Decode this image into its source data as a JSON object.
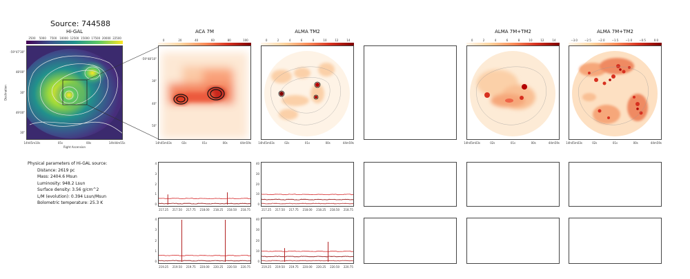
{
  "source_title": "Source: 744588",
  "panels": {
    "higal": {
      "title": "Hi-GAL",
      "colorbar_ticks": [
        "2500",
        "5000",
        "7500",
        "10000",
        "12500",
        "15000",
        "17500",
        "20000",
        "22500"
      ],
      "y_ticks": [
        "-59°47'30\"",
        "48'00\"",
        "30\"",
        "49'00\"",
        "30\""
      ],
      "x_ticks": [
        "14h45m10s",
        "05s",
        "00s",
        "14h44m55s"
      ],
      "xlabel": "Right Ascension",
      "ylabel": "Declination"
    },
    "aca7m": {
      "title": "ACA 7M",
      "colorbar_ticks": [
        "0",
        "20",
        "40",
        "60",
        "80",
        "100"
      ],
      "y_ticks": [
        "-59°48'10\"",
        "30\"",
        "40\"",
        "50\""
      ],
      "x_ticks": [
        "14h45m03s",
        "02s",
        "01s",
        "00s",
        "44m59s"
      ]
    },
    "almatm2": {
      "title": "ALMA TM2",
      "colorbar_ticks": [
        "0",
        "2",
        "4",
        "6",
        "8",
        "10",
        "12",
        "14"
      ],
      "x_ticks": [
        "14h45m03s",
        "02s",
        "01s",
        "00s",
        "44m59s"
      ]
    },
    "combo": {
      "title": "ALMA 7M+TM2",
      "colorbar_ticks": [
        "0",
        "2",
        "4",
        "6",
        "8",
        "10",
        "12",
        "14"
      ],
      "x_ticks": [
        "14h45m03s",
        "02s",
        "01s",
        "00s",
        "44m59s"
      ]
    },
    "combolog": {
      "title": "ALMA 7M+TM2",
      "colorbar_ticks": [
        "−3.0",
        "−2.5",
        "−2.0",
        "−1.5",
        "−1.0",
        "−0.5",
        "0.0"
      ],
      "x_ticks": [
        "14h45m03s",
        "02s",
        "01s",
        "00s",
        "44m59s"
      ]
    }
  },
  "params": {
    "heading": "Physical parameters of Hi-GAL source:",
    "lines": [
      "Distance: 2619 pc",
      "Mass: 2404.6 Msun",
      "Luminosity: 948.2 Lsun",
      "Surface density: 3.56 g/cm^2",
      "L/M (evolution): 0.394 Lsun/Msun",
      "Bolometric temperature: 25.3 K"
    ]
  },
  "spectra": {
    "row1_x_ticks": [
      "217.25",
      "217.50",
      "217.75",
      "218.00",
      "218.25",
      "218.50",
      "218.75"
    ],
    "row2_x_ticks": [
      "219.25",
      "219.50",
      "219.75",
      "220.00",
      "220.25",
      "220.50",
      "220.75"
    ],
    "aca_y_ticks": [
      "4",
      "3",
      "2",
      "1",
      "0"
    ],
    "tm2_y_ticks": [
      "40",
      "30",
      "20",
      "10",
      "0"
    ]
  },
  "chart_data": [
    {
      "type": "heatmap",
      "title": "Hi-GAL",
      "xlabel": "Right Ascension",
      "ylabel": "Declination",
      "colorbar_range": [
        2500,
        22500
      ]
    },
    {
      "type": "heatmap",
      "title": "ACA 7M",
      "colorbar_range": [
        0,
        100
      ]
    },
    {
      "type": "heatmap",
      "title": "ALMA TM2",
      "colorbar_range": [
        0,
        14
      ]
    },
    {
      "type": "heatmap",
      "title": "ALMA 7M+TM2",
      "colorbar_range": [
        0,
        14
      ]
    },
    {
      "type": "heatmap",
      "title": "ALMA 7M+TM2",
      "colorbar_range": [
        -3.0,
        0.0
      ]
    },
    {
      "type": "line",
      "panel": "ACA 7M spectrum row 1",
      "x_range": [
        217.1,
        218.9
      ],
      "ylim": [
        0,
        4
      ],
      "series": [
        {
          "values": [
            0.6,
            0.6,
            0.6,
            0.6,
            0.6
          ]
        },
        {
          "values": [
            0.1,
            0.1,
            0.1,
            0.1,
            0.1
          ]
        }
      ],
      "peaks": [
        {
          "x": 217.29,
          "y": 1.0
        },
        {
          "x": 218.44,
          "y": 1.2
        }
      ]
    },
    {
      "type": "line",
      "panel": "ALMA TM2 spectrum row 1",
      "x_range": [
        217.1,
        218.9
      ],
      "ylim": [
        0,
        40
      ],
      "series": [
        {
          "values": [
            10,
            10,
            10,
            10,
            10
          ]
        },
        {
          "values": [
            5,
            5,
            5,
            5,
            5
          ]
        },
        {
          "values": [
            1,
            1,
            1,
            1,
            1
          ]
        }
      ]
    },
    {
      "type": "line",
      "panel": "ACA 7M spectrum row 2",
      "x_range": [
        219.1,
        220.9
      ],
      "ylim": [
        0,
        4
      ],
      "series": [
        {
          "values": [
            0.6,
            0.6,
            0.6,
            0.6,
            0.6
          ]
        },
        {
          "values": [
            0.1,
            0.1,
            0.1,
            0.1,
            0.1
          ]
        }
      ],
      "peaks": [
        {
          "x": 219.56,
          "y": 4.0
        },
        {
          "x": 220.4,
          "y": 4.0
        }
      ]
    },
    {
      "type": "line",
      "panel": "ALMA TM2 spectrum row 2",
      "x_range": [
        219.1,
        220.9
      ],
      "ylim": [
        0,
        40
      ],
      "series": [
        {
          "values": [
            10,
            10,
            10,
            10,
            10
          ]
        },
        {
          "values": [
            5,
            5,
            5,
            5,
            5
          ]
        },
        {
          "values": [
            1,
            1,
            1,
            1,
            1
          ]
        }
      ],
      "peaks": [
        {
          "x": 219.56,
          "y": 13
        },
        {
          "x": 220.4,
          "y": 19
        }
      ]
    }
  ]
}
